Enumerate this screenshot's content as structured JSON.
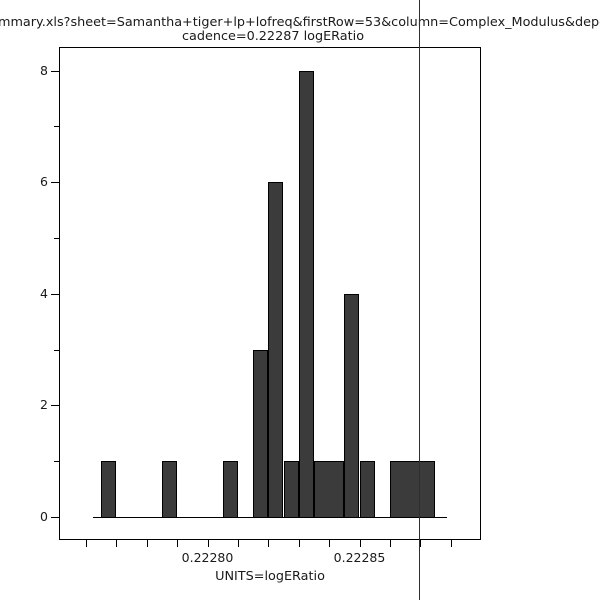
{
  "title": {
    "line1": "mmary.xls?sheet=Samantha+tiger+lp+lofreq&firstRow=53&column=Complex_Modulus&depende",
    "line2": "cadence=0.22287 logERatio"
  },
  "axes": {
    "x_axis_title": "UNITS=logERatio",
    "x_tick_labels": [
      {
        "text": "0.22280",
        "value": 0.2228
      },
      {
        "text": "0.22285",
        "value": 0.22285
      }
    ],
    "y_tick_labels": [
      {
        "text": "0",
        "value": 0
      },
      {
        "text": "2",
        "value": 2
      },
      {
        "text": "4",
        "value": 4
      },
      {
        "text": "6",
        "value": 6
      },
      {
        "text": "8",
        "value": 8
      }
    ]
  },
  "chart_data": {
    "type": "bar",
    "subtype": "histogram",
    "title": "cadence=0.22287 logERatio",
    "xlabel": "UNITS=logERatio",
    "ylabel": "",
    "bin_start": 0.222765,
    "bin_width": 5e-06,
    "counts": [
      1,
      0,
      0,
      0,
      1,
      0,
      0,
      0,
      1,
      0,
      3,
      6,
      1,
      8,
      1,
      1,
      4,
      1,
      0,
      1,
      1,
      1
    ],
    "total_count": 31,
    "x_ticks": [
      0.22276,
      0.22277,
      0.22278,
      0.22279,
      0.2228,
      0.22281,
      0.22282,
      0.22283,
      0.22284,
      0.22285,
      0.22286,
      0.22287,
      0.22288
    ],
    "y_major_ticks": [
      0,
      2,
      4,
      6,
      8
    ],
    "y_minor_ticks": [
      1,
      3,
      5,
      7
    ],
    "xlim": [
      0.222751,
      0.222889
    ],
    "ylim": [
      -0.41,
      8.43
    ],
    "grid": false,
    "legend": "none",
    "marker_line_x": 0.22287
  },
  "colors": {
    "background": "#ffffff",
    "bar_fill": "#3b3b3b",
    "bar_outline": "#000000",
    "axis": "#000000",
    "marker_line": "#2e2e2e",
    "text": "#1a1a1a"
  }
}
